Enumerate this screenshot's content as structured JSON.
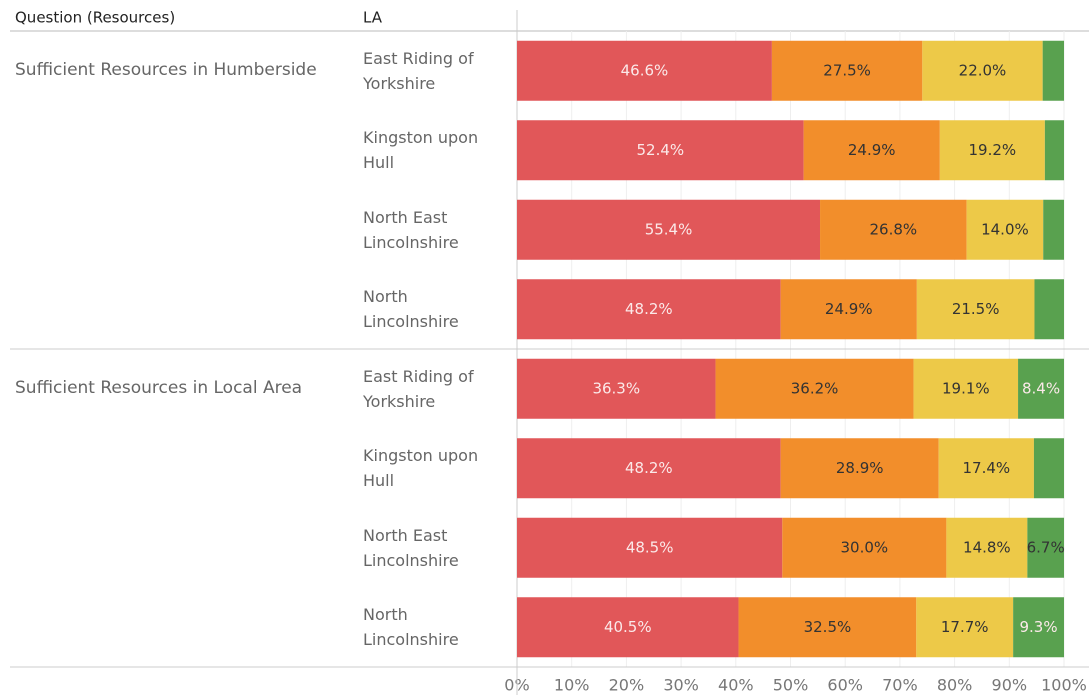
{
  "chart_data": {
    "type": "bar",
    "orientation": "horizontal",
    "stacked": true,
    "header_group": "Question (Resources)",
    "header_category": "LA",
    "xlim": [
      0,
      100
    ],
    "xticks": [
      {
        "value": 0,
        "label": "0%"
      },
      {
        "value": 10,
        "label": "10%"
      },
      {
        "value": 20,
        "label": "20%"
      },
      {
        "value": 30,
        "label": "30%"
      },
      {
        "value": 40,
        "label": "40%"
      },
      {
        "value": 50,
        "label": "50%"
      },
      {
        "value": 60,
        "label": "60%"
      },
      {
        "value": 70,
        "label": "70%"
      },
      {
        "value": 80,
        "label": "80%"
      },
      {
        "value": 90,
        "label": "90%"
      },
      {
        "value": 100,
        "label": "100%"
      }
    ],
    "grid": true,
    "groups": [
      {
        "label": "Sufficient Resources in Humberside",
        "categories": [
          "East Riding of Yorkshire",
          "Kingston upon Hull",
          "North East Lincolnshire",
          "North Lincolnshire"
        ],
        "series": [
          {
            "color": "#e15759",
            "values": [
              46.6,
              52.4,
              55.4,
              48.2
            ],
            "value_labels": [
              "46.6%",
              "52.4%",
              "55.4%",
              "48.2%"
            ]
          },
          {
            "color": "#f28e2b",
            "values": [
              27.5,
              24.9,
              26.8,
              24.9
            ],
            "value_labels": [
              "27.5%",
              "24.9%",
              "26.8%",
              "24.9%"
            ]
          },
          {
            "color": "#edc948",
            "values": [
              22.0,
              19.2,
              14.0,
              21.5
            ],
            "value_labels": [
              "22.0%",
              "19.2%",
              "14.0%",
              "21.5%"
            ]
          },
          {
            "color": "#59a14f",
            "values": [
              3.9,
              3.5,
              3.8,
              5.4
            ],
            "value_labels": [
              null,
              null,
              null,
              null
            ]
          }
        ]
      },
      {
        "label": "Sufficient Resources in Local Area",
        "categories": [
          "East Riding of Yorkshire",
          "Kingston upon Hull",
          "North East Lincolnshire",
          "North Lincolnshire"
        ],
        "series": [
          {
            "color": "#e15759",
            "values": [
              36.3,
              48.2,
              48.5,
              40.5
            ],
            "value_labels": [
              "36.3%",
              "48.2%",
              "48.5%",
              "40.5%"
            ]
          },
          {
            "color": "#f28e2b",
            "values": [
              36.2,
              28.9,
              30.0,
              32.5
            ],
            "value_labels": [
              "36.2%",
              "28.9%",
              "30.0%",
              "32.5%"
            ]
          },
          {
            "color": "#edc948",
            "values": [
              19.1,
              17.4,
              14.8,
              17.7
            ],
            "value_labels": [
              "19.1%",
              "17.4%",
              "14.8%",
              "17.7%"
            ]
          },
          {
            "color": "#59a14f",
            "values": [
              8.4,
              5.5,
              6.7,
              9.3
            ],
            "value_labels": [
              "8.4%",
              null,
              "6.7%",
              "9.3%"
            ]
          }
        ]
      }
    ]
  }
}
